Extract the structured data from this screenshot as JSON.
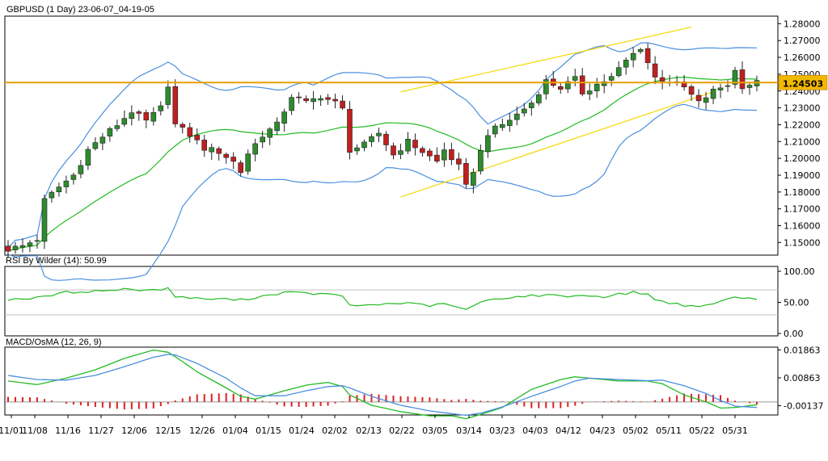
{
  "colors": {
    "bull": "#2e8b2e",
    "bear": "#c02020",
    "bollinger": "#4a8fe0",
    "ma": "#22bb22",
    "channel": "#f5d800",
    "level": "#e8a000",
    "level_label_bg": "#f2b800",
    "rsi_line": "#22bb22",
    "rsi_ref": "#bfbfbf",
    "macd_line": "#4a8fe0",
    "signal_line": "#22bb22",
    "osma_bar": "#e02020",
    "axis": "#000000"
  },
  "chart_data": [
    {
      "type": "candlestick",
      "title": "GBPUSD (1 Day) 23-06-07_04-19-05",
      "ylim": [
        1.1425,
        1.2845
      ],
      "y_ticks": [
        "1.28000",
        "1.27000",
        "1.26000",
        "1.25000",
        "1.24000",
        "1.23000",
        "1.22000",
        "1.21000",
        "1.20000",
        "1.19000",
        "1.18000",
        "1.17000",
        "1.16000",
        "1.15000"
      ],
      "horizontal_level": 1.24503,
      "horizontal_level_label": "1.24503",
      "channel": {
        "upper": [
          [
            0,
            1.2395
          ],
          [
            94,
            1.278
          ]
        ],
        "lower": [
          [
            0,
            1.177
          ],
          [
            97,
            1.2395
          ]
        ]
      },
      "n_bars": 104,
      "x_labels": [
        "11/01",
        "11/08",
        "11/16",
        "11/27",
        "12/06",
        "12/15",
        "12/26",
        "01/04",
        "01/15",
        "01/24",
        "02/02",
        "02/13",
        "02/22",
        "03/05",
        "03/14",
        "03/23",
        "04/03",
        "04/12",
        "04/23",
        "05/02",
        "05/11",
        "05/22",
        "05/31"
      ],
      "close_anchors": [
        [
          0,
          1.146
        ],
        [
          2,
          1.148
        ],
        [
          4,
          1.152
        ],
        [
          5,
          1.175
        ],
        [
          7,
          1.183
        ],
        [
          9,
          1.19
        ],
        [
          11,
          1.205
        ],
        [
          13,
          1.213
        ],
        [
          15,
          1.22
        ],
        [
          17,
          1.228
        ],
        [
          19,
          1.222
        ],
        [
          21,
          1.23
        ],
        [
          22,
          1.244
        ],
        [
          23,
          1.22
        ],
        [
          25,
          1.214
        ],
        [
          27,
          1.206
        ],
        [
          29,
          1.204
        ],
        [
          31,
          1.198
        ],
        [
          32,
          1.192
        ],
        [
          33,
          1.203
        ],
        [
          35,
          1.214
        ],
        [
          37,
          1.22
        ],
        [
          39,
          1.237
        ],
        [
          41,
          1.233
        ],
        [
          43,
          1.237
        ],
        [
          45,
          1.233
        ],
        [
          46,
          1.229
        ],
        [
          47,
          1.205
        ],
        [
          49,
          1.208
        ],
        [
          51,
          1.215
        ],
        [
          53,
          1.202
        ],
        [
          55,
          1.21
        ],
        [
          57,
          1.204
        ],
        [
          59,
          1.198
        ],
        [
          60,
          1.205
        ],
        [
          62,
          1.195
        ],
        [
          63,
          1.183
        ],
        [
          64,
          1.193
        ],
        [
          66,
          1.215
        ],
        [
          68,
          1.22
        ],
        [
          70,
          1.226
        ],
        [
          72,
          1.233
        ],
        [
          74,
          1.246
        ],
        [
          76,
          1.242
        ],
        [
          78,
          1.247
        ],
        [
          79,
          1.239
        ],
        [
          81,
          1.244
        ],
        [
          83,
          1.248
        ],
        [
          85,
          1.258
        ],
        [
          87,
          1.266
        ],
        [
          89,
          1.248
        ],
        [
          91,
          1.246
        ],
        [
          93,
          1.242
        ],
        [
          95,
          1.233
        ],
        [
          97,
          1.24
        ],
        [
          99,
          1.244
        ],
        [
          100,
          1.252
        ],
        [
          101,
          1.243
        ],
        [
          103,
          1.245
        ]
      ]
    },
    {
      "type": "line",
      "title": "RSI By Wilder (14): 50.99",
      "ylim": [
        0,
        100
      ],
      "y_ticks": [
        "100.00",
        "50.00",
        "0.00"
      ],
      "ref_levels": [
        70,
        30
      ],
      "series": [
        {
          "anchors": [
            [
              0,
              55
            ],
            [
              4,
              57
            ],
            [
              8,
              66
            ],
            [
              12,
              68
            ],
            [
              16,
              71
            ],
            [
              20,
              70
            ],
            [
              22,
              72
            ],
            [
              23,
              60
            ],
            [
              26,
              56
            ],
            [
              30,
              55
            ],
            [
              32,
              54
            ],
            [
              34,
              58
            ],
            [
              38,
              66
            ],
            [
              42,
              64
            ],
            [
              46,
              61
            ],
            [
              47,
              44
            ],
            [
              50,
              46
            ],
            [
              54,
              49
            ],
            [
              58,
              45
            ],
            [
              60,
              47
            ],
            [
              62,
              42
            ],
            [
              63,
              38
            ],
            [
              64,
              44
            ],
            [
              66,
              54
            ],
            [
              68,
              57
            ],
            [
              72,
              61
            ],
            [
              76,
              61
            ],
            [
              78,
              60
            ],
            [
              80,
              61
            ],
            [
              82,
              59
            ],
            [
              84,
              63
            ],
            [
              86,
              66
            ],
            [
              88,
              64
            ],
            [
              89,
              53
            ],
            [
              92,
              48
            ],
            [
              95,
              41
            ],
            [
              97,
              49
            ],
            [
              99,
              54
            ],
            [
              100,
              58
            ],
            [
              103,
              55
            ]
          ]
        }
      ]
    },
    {
      "type": "line",
      "title": "MACD/OsMA (12, 26, 9)",
      "ylim": [
        -0.0041,
        0.01903
      ],
      "y_ticks": [
        "0.01863",
        "0.00863",
        "-0.00137"
      ],
      "zero_line": 0.0,
      "series": [
        {
          "name": "",
          "anchors": [
            [
              0,
              0.0075
            ],
            [
              4,
              0.0062
            ],
            [
              8,
              0.0085
            ],
            [
              12,
              0.0115
            ],
            [
              16,
              0.0156
            ],
            [
              20,
              0.0186
            ],
            [
              22,
              0.0178
            ],
            [
              23,
              0.0162
            ],
            [
              26,
              0.0108
            ],
            [
              30,
              0.005
            ],
            [
              32,
              0.002
            ],
            [
              34,
              0.001
            ],
            [
              38,
              0.004
            ],
            [
              41,
              0.006
            ],
            [
              44,
              0.007
            ],
            [
              46,
              0.0055
            ],
            [
              47,
              0.0025
            ],
            [
              50,
              -0.0012
            ],
            [
              54,
              -0.0035
            ],
            [
              58,
              -0.005
            ],
            [
              61,
              -0.005
            ],
            [
              63,
              -0.006
            ],
            [
              65,
              -0.0045
            ],
            [
              68,
              -0.002
            ],
            [
              72,
              0.0045
            ],
            [
              76,
              0.008
            ],
            [
              78,
              0.009
            ],
            [
              80,
              0.0085
            ],
            [
              84,
              0.0075
            ],
            [
              88,
              0.0075
            ],
            [
              90,
              0.0065
            ],
            [
              93,
              0.0025
            ],
            [
              96,
              0.0
            ],
            [
              98,
              -0.0022
            ],
            [
              100,
              -0.002
            ],
            [
              103,
              -0.001
            ]
          ]
        },
        {
          "name": "",
          "anchors": [
            [
              0,
              0.0095
            ],
            [
              4,
              0.008
            ],
            [
              8,
              0.0078
            ],
            [
              12,
              0.0095
            ],
            [
              16,
              0.0126
            ],
            [
              20,
              0.016
            ],
            [
              22,
              0.017
            ],
            [
              23,
              0.0168
            ],
            [
              26,
              0.0138
            ],
            [
              30,
              0.0085
            ],
            [
              32,
              0.005
            ],
            [
              34,
              0.0022
            ],
            [
              38,
              0.0022
            ],
            [
              41,
              0.004
            ],
            [
              44,
              0.0055
            ],
            [
              46,
              0.0058
            ],
            [
              47,
              0.005
            ],
            [
              50,
              0.002
            ],
            [
              54,
              -0.0012
            ],
            [
              58,
              -0.0032
            ],
            [
              61,
              -0.0042
            ],
            [
              63,
              -0.0048
            ],
            [
              65,
              -0.004
            ],
            [
              68,
              -0.0018
            ],
            [
              72,
              0.002
            ],
            [
              76,
              0.0055
            ],
            [
              78,
              0.0075
            ],
            [
              80,
              0.0085
            ],
            [
              84,
              0.008
            ],
            [
              88,
              0.0076
            ],
            [
              90,
              0.0078
            ],
            [
              93,
              0.0058
            ],
            [
              96,
              0.003
            ],
            [
              98,
              0.0005
            ],
            [
              100,
              -0.0015
            ],
            [
              103,
              -0.002
            ]
          ]
        }
      ]
    }
  ]
}
